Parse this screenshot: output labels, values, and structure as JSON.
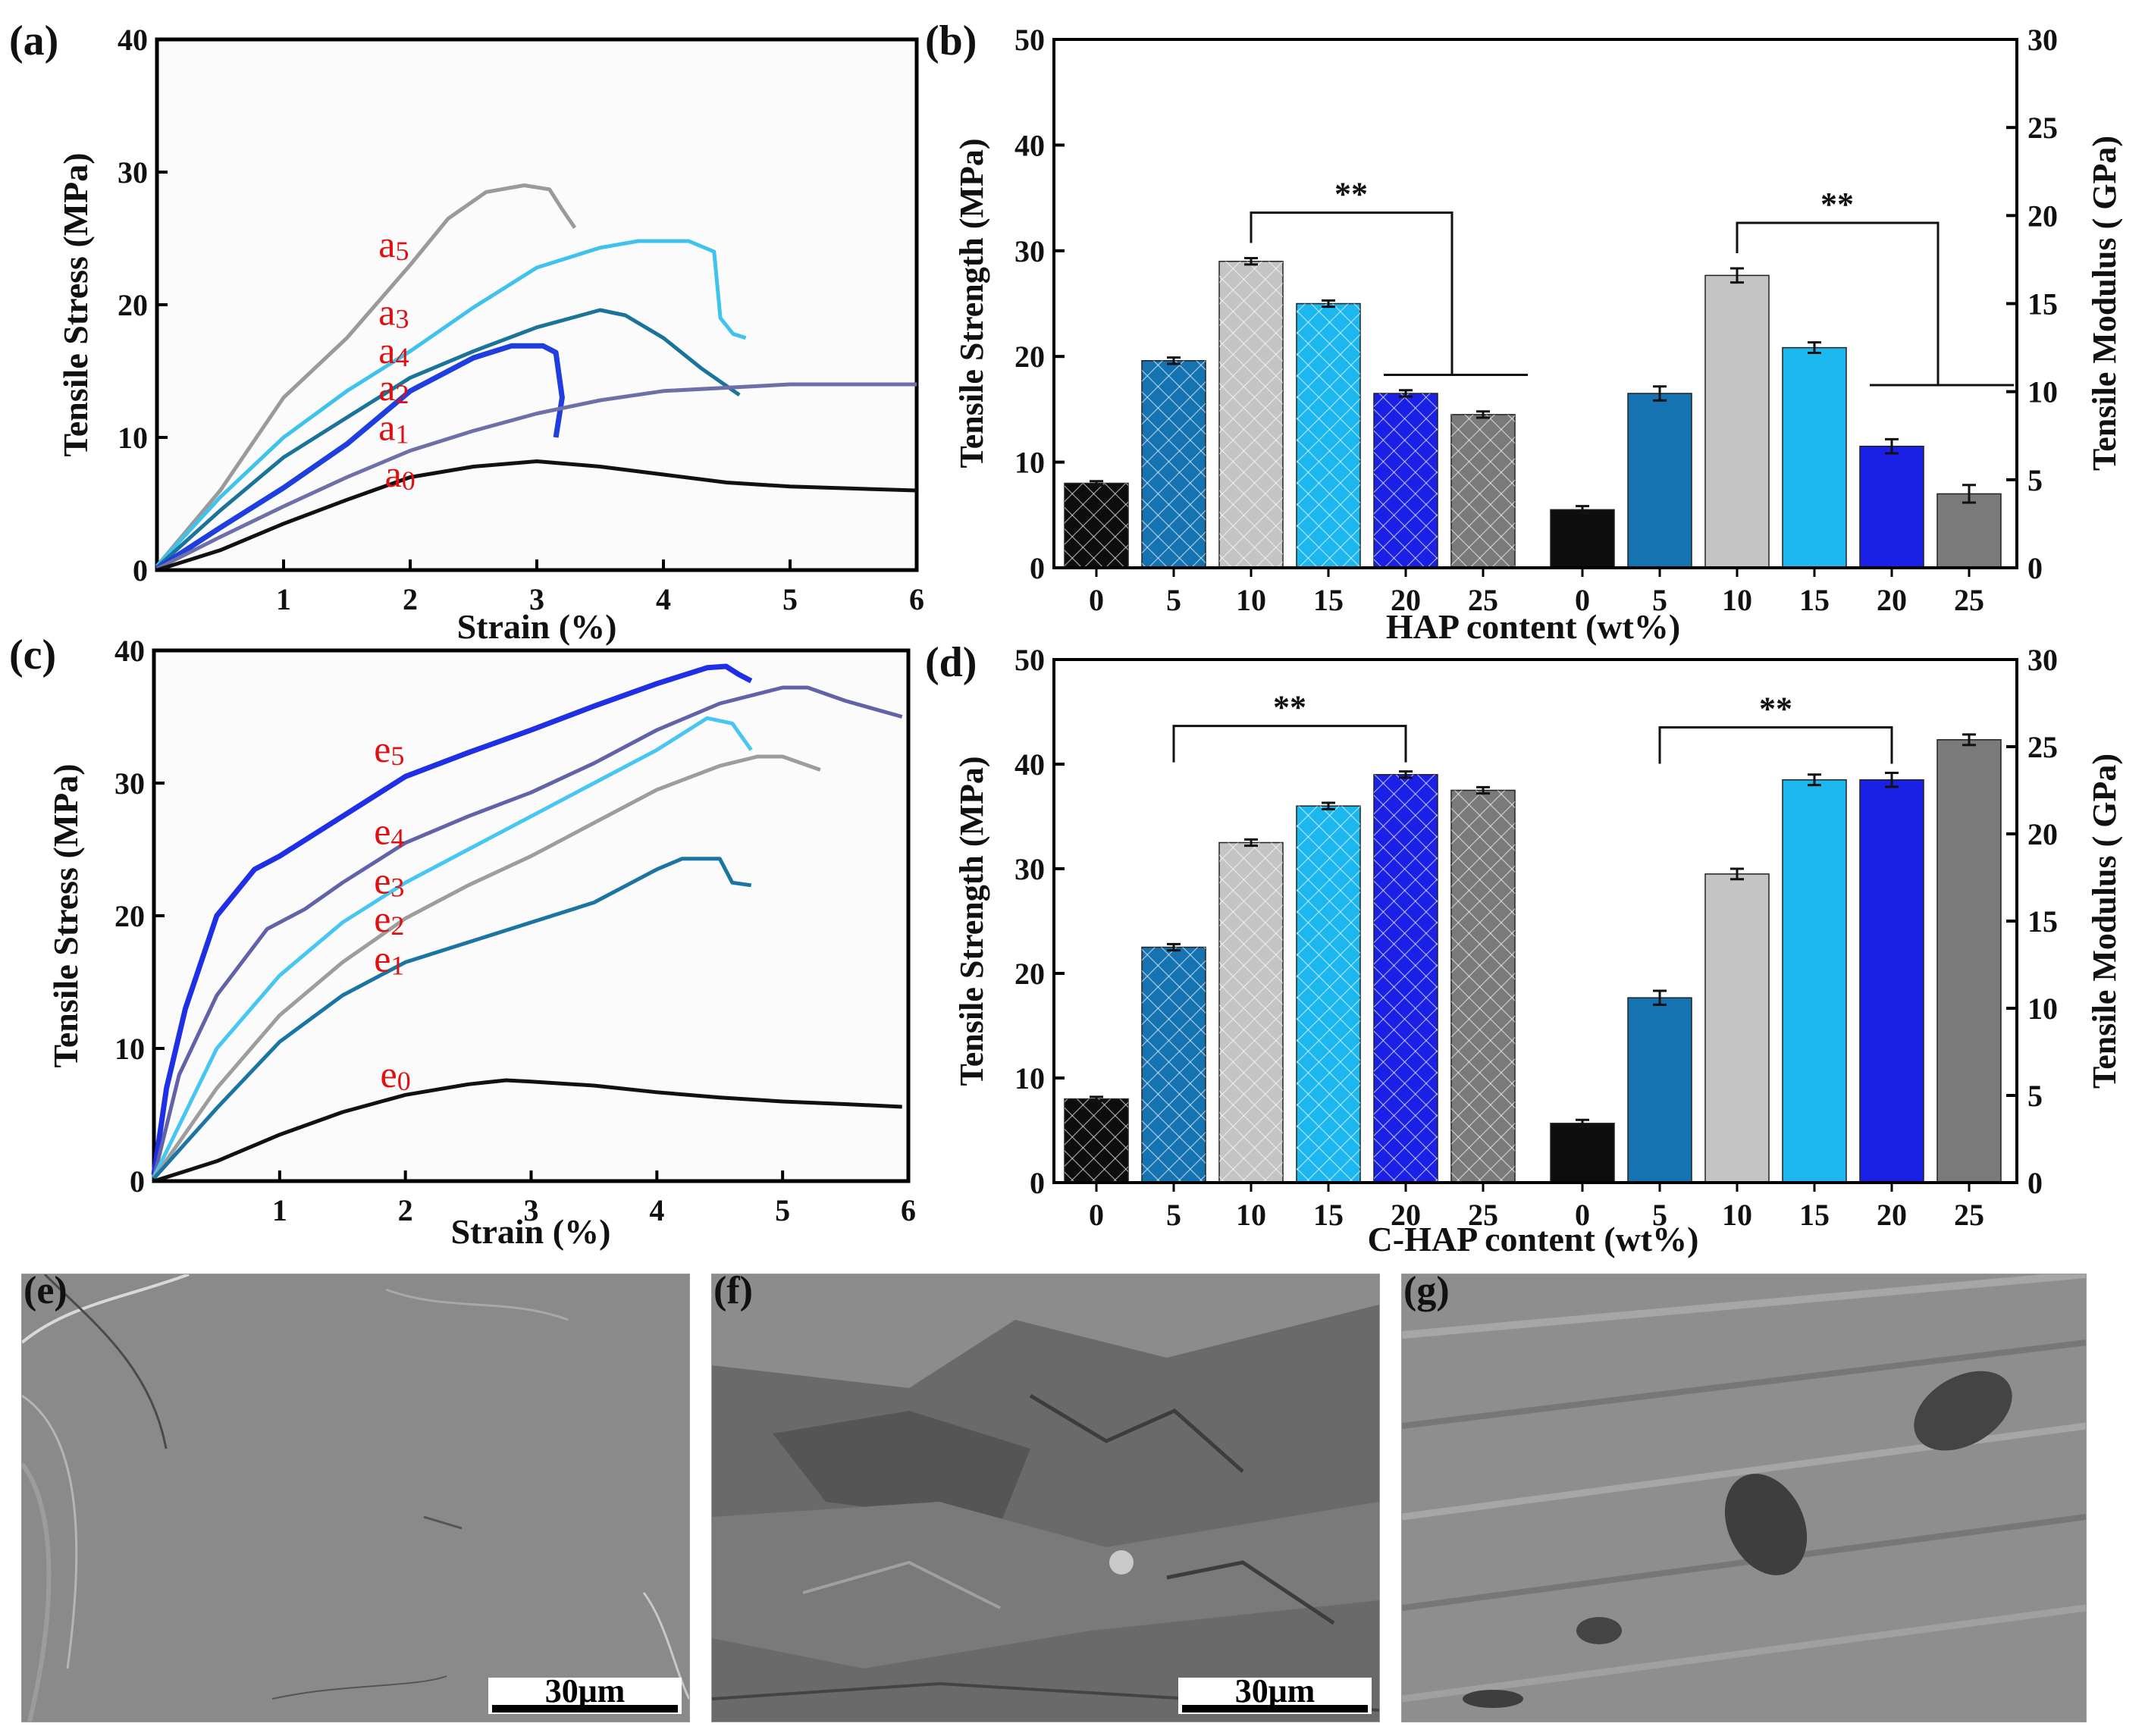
{
  "figure": {
    "panels": {
      "a": {
        "label": "(a)"
      },
      "b": {
        "label": "(b)"
      },
      "c": {
        "label": "(c)"
      },
      "d": {
        "label": "(d)"
      },
      "e": {
        "label": "(e)",
        "scale_bar": "30μm"
      },
      "f": {
        "label": "(f)",
        "scale_bar": "30μm"
      },
      "g": {
        "label": "(g)"
      }
    }
  },
  "chart_data": [
    {
      "panel": "a",
      "type": "line",
      "xlabel": "Strain (%)",
      "ylabel": "Tensile  Stress (MPa)",
      "xlim": [
        0,
        6
      ],
      "ylim": [
        0,
        40
      ],
      "xticks": [
        1,
        2,
        3,
        4,
        5,
        6
      ],
      "yticks": [
        0,
        10,
        20,
        30,
        40
      ],
      "series": [
        {
          "name": "a5",
          "color": "#9a9a9a",
          "label_at": [
            1.75,
            23.6
          ],
          "points": [
            [
              0,
              0.3
            ],
            [
              0.5,
              6
            ],
            [
              1,
              13
            ],
            [
              1.5,
              17.5
            ],
            [
              2,
              23
            ],
            [
              2.3,
              26.5
            ],
            [
              2.6,
              28.5
            ],
            [
              2.9,
              29
            ],
            [
              3.1,
              28.7
            ],
            [
              3.2,
              27.2
            ],
            [
              3.3,
              25.8
            ]
          ]
        },
        {
          "name": "a3",
          "color": "#3fc2ec",
          "label_at": [
            1.75,
            18.5
          ],
          "points": [
            [
              0,
              0.3
            ],
            [
              0.5,
              5.5
            ],
            [
              1,
              10
            ],
            [
              1.5,
              13.5
            ],
            [
              2,
              16.5
            ],
            [
              2.5,
              19.8
            ],
            [
              3,
              22.8
            ],
            [
              3.5,
              24.3
            ],
            [
              3.8,
              24.8
            ],
            [
              4.2,
              24.8
            ],
            [
              4.4,
              24
            ],
            [
              4.45,
              19
            ],
            [
              4.55,
              17.8
            ],
            [
              4.65,
              17.5
            ]
          ]
        },
        {
          "name": "a4",
          "color": "#1a7399",
          "label_at": [
            1.75,
            15.6
          ],
          "points": [
            [
              0,
              0.2
            ],
            [
              0.5,
              4.5
            ],
            [
              1,
              8.5
            ],
            [
              1.5,
              11.5
            ],
            [
              2,
              14.5
            ],
            [
              2.5,
              16.5
            ],
            [
              3,
              18.3
            ],
            [
              3.5,
              19.6
            ],
            [
              3.7,
              19.2
            ],
            [
              4,
              17.5
            ],
            [
              4.3,
              15.2
            ],
            [
              4.6,
              13.2
            ]
          ]
        },
        {
          "name": "a2",
          "color": "#1f3ee0",
          "label_at": [
            1.75,
            12.8
          ],
          "points": [
            [
              0,
              0.1
            ],
            [
              0.5,
              3.2
            ],
            [
              1,
              6.2
            ],
            [
              1.5,
              9.5
            ],
            [
              2,
              13.5
            ],
            [
              2.5,
              16
            ],
            [
              2.8,
              16.9
            ],
            [
              3.05,
              16.9
            ],
            [
              3.15,
              16.4
            ],
            [
              3.2,
              13
            ],
            [
              3.15,
              10
            ]
          ]
        },
        {
          "name": "a1",
          "color": "#6e6fa8",
          "label_at": [
            1.75,
            9.8
          ],
          "points": [
            [
              0,
              0.1
            ],
            [
              0.5,
              2.5
            ],
            [
              1,
              4.8
            ],
            [
              1.5,
              7
            ],
            [
              2,
              9
            ],
            [
              2.5,
              10.5
            ],
            [
              3,
              11.8
            ],
            [
              3.5,
              12.8
            ],
            [
              4,
              13.5
            ],
            [
              5,
              14
            ],
            [
              6,
              14
            ]
          ]
        },
        {
          "name": "a0",
          "color": "#111111",
          "label_at": [
            1.8,
            6.3
          ],
          "points": [
            [
              0,
              0
            ],
            [
              0.5,
              1.5
            ],
            [
              1,
              3.5
            ],
            [
              1.5,
              5.3
            ],
            [
              2,
              7
            ],
            [
              2.5,
              7.8
            ],
            [
              3,
              8.2
            ],
            [
              3.5,
              7.8
            ],
            [
              4,
              7.2
            ],
            [
              4.5,
              6.6
            ],
            [
              5,
              6.3
            ],
            [
              6,
              6
            ]
          ]
        }
      ]
    },
    {
      "panel": "b",
      "type": "bar",
      "xlabel": "HAP content (wt%)",
      "ylabel_left": "Tensile Strength (MPa)",
      "ylabel_right": "Tensile Modulus ( GPa)",
      "ylim_left": [
        0,
        50
      ],
      "ylim_right": [
        0,
        30
      ],
      "yticks_left": [
        0,
        10,
        20,
        30,
        40,
        50
      ],
      "yticks_right": [
        0,
        5,
        10,
        15,
        20,
        25,
        30
      ],
      "categories": [
        "0",
        "5",
        "10",
        "15",
        "20",
        "25"
      ],
      "colors": [
        "#0d0d0d",
        "#1673b2",
        "#c4c4c4",
        "#1bb7ee",
        "#1b20e6",
        "#7a7a7a"
      ],
      "series": [
        {
          "name": "Tensile Strength",
          "axis": "left",
          "hatched": true,
          "values": [
            8,
            19.6,
            29,
            25,
            16.5,
            14.5
          ],
          "errors": [
            0.2,
            0.3,
            0.3,
            0.3,
            0.3,
            0.3
          ]
        },
        {
          "name": "Tensile Modulus",
          "axis": "right",
          "hatched": false,
          "values": [
            3.3,
            9.9,
            16.6,
            12.5,
            6.9,
            4.2
          ],
          "errors": [
            0.2,
            0.4,
            0.4,
            0.3,
            0.4,
            0.5
          ]
        }
      ],
      "annotations": [
        {
          "text": "**",
          "series": 0,
          "from": "10",
          "to": "25"
        },
        {
          "text": "**",
          "series": 1,
          "from": "10",
          "to": "25"
        }
      ]
    },
    {
      "panel": "c",
      "type": "line",
      "xlabel": "Strain (%)",
      "ylabel": "Tensile  Stress (MPa)",
      "xlim": [
        0,
        6
      ],
      "ylim": [
        0,
        40
      ],
      "xticks": [
        1,
        2,
        3,
        4,
        5,
        6
      ],
      "yticks": [
        0,
        10,
        20,
        30,
        40
      ],
      "series": [
        {
          "name": "e5",
          "color": "#1f2fe6",
          "label_at": [
            1.75,
            31.6
          ],
          "points": [
            [
              0,
              0.5
            ],
            [
              0.1,
              7
            ],
            [
              0.25,
              13
            ],
            [
              0.5,
              20
            ],
            [
              0.8,
              23.5
            ],
            [
              1,
              24.5
            ],
            [
              1.5,
              27.5
            ],
            [
              2,
              30.5
            ],
            [
              2.5,
              32.3
            ],
            [
              3,
              34
            ],
            [
              3.5,
              35.8
            ],
            [
              4,
              37.5
            ],
            [
              4.4,
              38.7
            ],
            [
              4.55,
              38.8
            ],
            [
              4.65,
              38.2
            ],
            [
              4.75,
              37.7
            ]
          ]
        },
        {
          "name": "e4",
          "color": "#6162a8",
          "label_at": [
            1.75,
            25.4
          ],
          "points": [
            [
              0,
              0.3
            ],
            [
              0.2,
              8
            ],
            [
              0.5,
              14
            ],
            [
              0.9,
              19
            ],
            [
              1.2,
              20.5
            ],
            [
              1.5,
              22.5
            ],
            [
              2,
              25.5
            ],
            [
              2.5,
              27.5
            ],
            [
              3,
              29.3
            ],
            [
              3.5,
              31.5
            ],
            [
              4,
              34
            ],
            [
              4.5,
              36
            ],
            [
              5,
              37.2
            ],
            [
              5.2,
              37.2
            ],
            [
              5.5,
              36.2
            ],
            [
              5.95,
              35
            ]
          ]
        },
        {
          "name": "e3",
          "color": "#46c6f0",
          "label_at": [
            1.75,
            21.7
          ],
          "points": [
            [
              0,
              0.3
            ],
            [
              0.5,
              10
            ],
            [
              1,
              15.5
            ],
            [
              1.5,
              19.5
            ],
            [
              2,
              22.5
            ],
            [
              2.5,
              25
            ],
            [
              3,
              27.5
            ],
            [
              3.5,
              30
            ],
            [
              4,
              32.5
            ],
            [
              4.4,
              34.9
            ],
            [
              4.6,
              34.5
            ],
            [
              4.75,
              32.5
            ]
          ]
        },
        {
          "name": "e2",
          "color": "#9d9d9d",
          "label_at": [
            1.75,
            18.8
          ],
          "points": [
            [
              0,
              0.2
            ],
            [
              0.5,
              7
            ],
            [
              1,
              12.5
            ],
            [
              1.5,
              16.5
            ],
            [
              2,
              19.8
            ],
            [
              2.5,
              22.3
            ],
            [
              3,
              24.5
            ],
            [
              3.5,
              27
            ],
            [
              4,
              29.5
            ],
            [
              4.5,
              31.3
            ],
            [
              4.8,
              32
            ],
            [
              5,
              32
            ],
            [
              5.15,
              31.5
            ],
            [
              5.3,
              31
            ]
          ]
        },
        {
          "name": "e1",
          "color": "#1a75a3",
          "label_at": [
            1.75,
            15.8
          ],
          "points": [
            [
              0,
              0.2
            ],
            [
              0.5,
              5.5
            ],
            [
              1,
              10.5
            ],
            [
              1.5,
              14
            ],
            [
              2,
              16.5
            ],
            [
              2.5,
              18
            ],
            [
              3,
              19.5
            ],
            [
              3.5,
              21
            ],
            [
              4,
              23.5
            ],
            [
              4.2,
              24.3
            ],
            [
              4.5,
              24.3
            ],
            [
              4.6,
              22.5
            ],
            [
              4.75,
              22.3
            ]
          ]
        },
        {
          "name": "e0",
          "color": "#111111",
          "label_at": [
            1.8,
            7.1
          ],
          "points": [
            [
              0,
              0
            ],
            [
              0.5,
              1.5
            ],
            [
              1,
              3.5
            ],
            [
              1.5,
              5.2
            ],
            [
              2,
              6.5
            ],
            [
              2.5,
              7.3
            ],
            [
              2.8,
              7.6
            ],
            [
              3,
              7.5
            ],
            [
              3.5,
              7.2
            ],
            [
              4,
              6.7
            ],
            [
              4.5,
              6.3
            ],
            [
              5,
              6
            ],
            [
              5.5,
              5.8
            ],
            [
              5.95,
              5.6
            ]
          ]
        }
      ]
    },
    {
      "panel": "d",
      "type": "bar",
      "xlabel": "C-HAP content (wt%)",
      "ylabel_left": "Tensile Strength (MPa)",
      "ylabel_right": "Tensile Modulus ( GPa)",
      "ylim_left": [
        0,
        50
      ],
      "ylim_right": [
        0,
        30
      ],
      "yticks_left": [
        0,
        10,
        20,
        30,
        40,
        50
      ],
      "yticks_right": [
        0,
        5,
        10,
        15,
        20,
        25,
        30
      ],
      "categories": [
        "0",
        "5",
        "10",
        "15",
        "20",
        "25"
      ],
      "colors": [
        "#0d0d0d",
        "#1673b2",
        "#c4c4c4",
        "#1bb7ee",
        "#1b20e6",
        "#7a7a7a"
      ],
      "series": [
        {
          "name": "Tensile Strength",
          "axis": "left",
          "hatched": true,
          "values": [
            8,
            22.5,
            32.5,
            36,
            39,
            37.5
          ],
          "errors": [
            0.2,
            0.3,
            0.3,
            0.3,
            0.3,
            0.3
          ]
        },
        {
          "name": "Tensile Modulus",
          "axis": "right",
          "hatched": false,
          "values": [
            3.4,
            10.6,
            17.7,
            23.1,
            23.1,
            25.4
          ],
          "errors": [
            0.2,
            0.4,
            0.3,
            0.3,
            0.4,
            0.3
          ]
        }
      ],
      "annotations": [
        {
          "text": "**",
          "series": 0,
          "from": "5",
          "to": "20"
        },
        {
          "text": "**",
          "series": 1,
          "from": "5",
          "to": "20"
        }
      ]
    }
  ]
}
